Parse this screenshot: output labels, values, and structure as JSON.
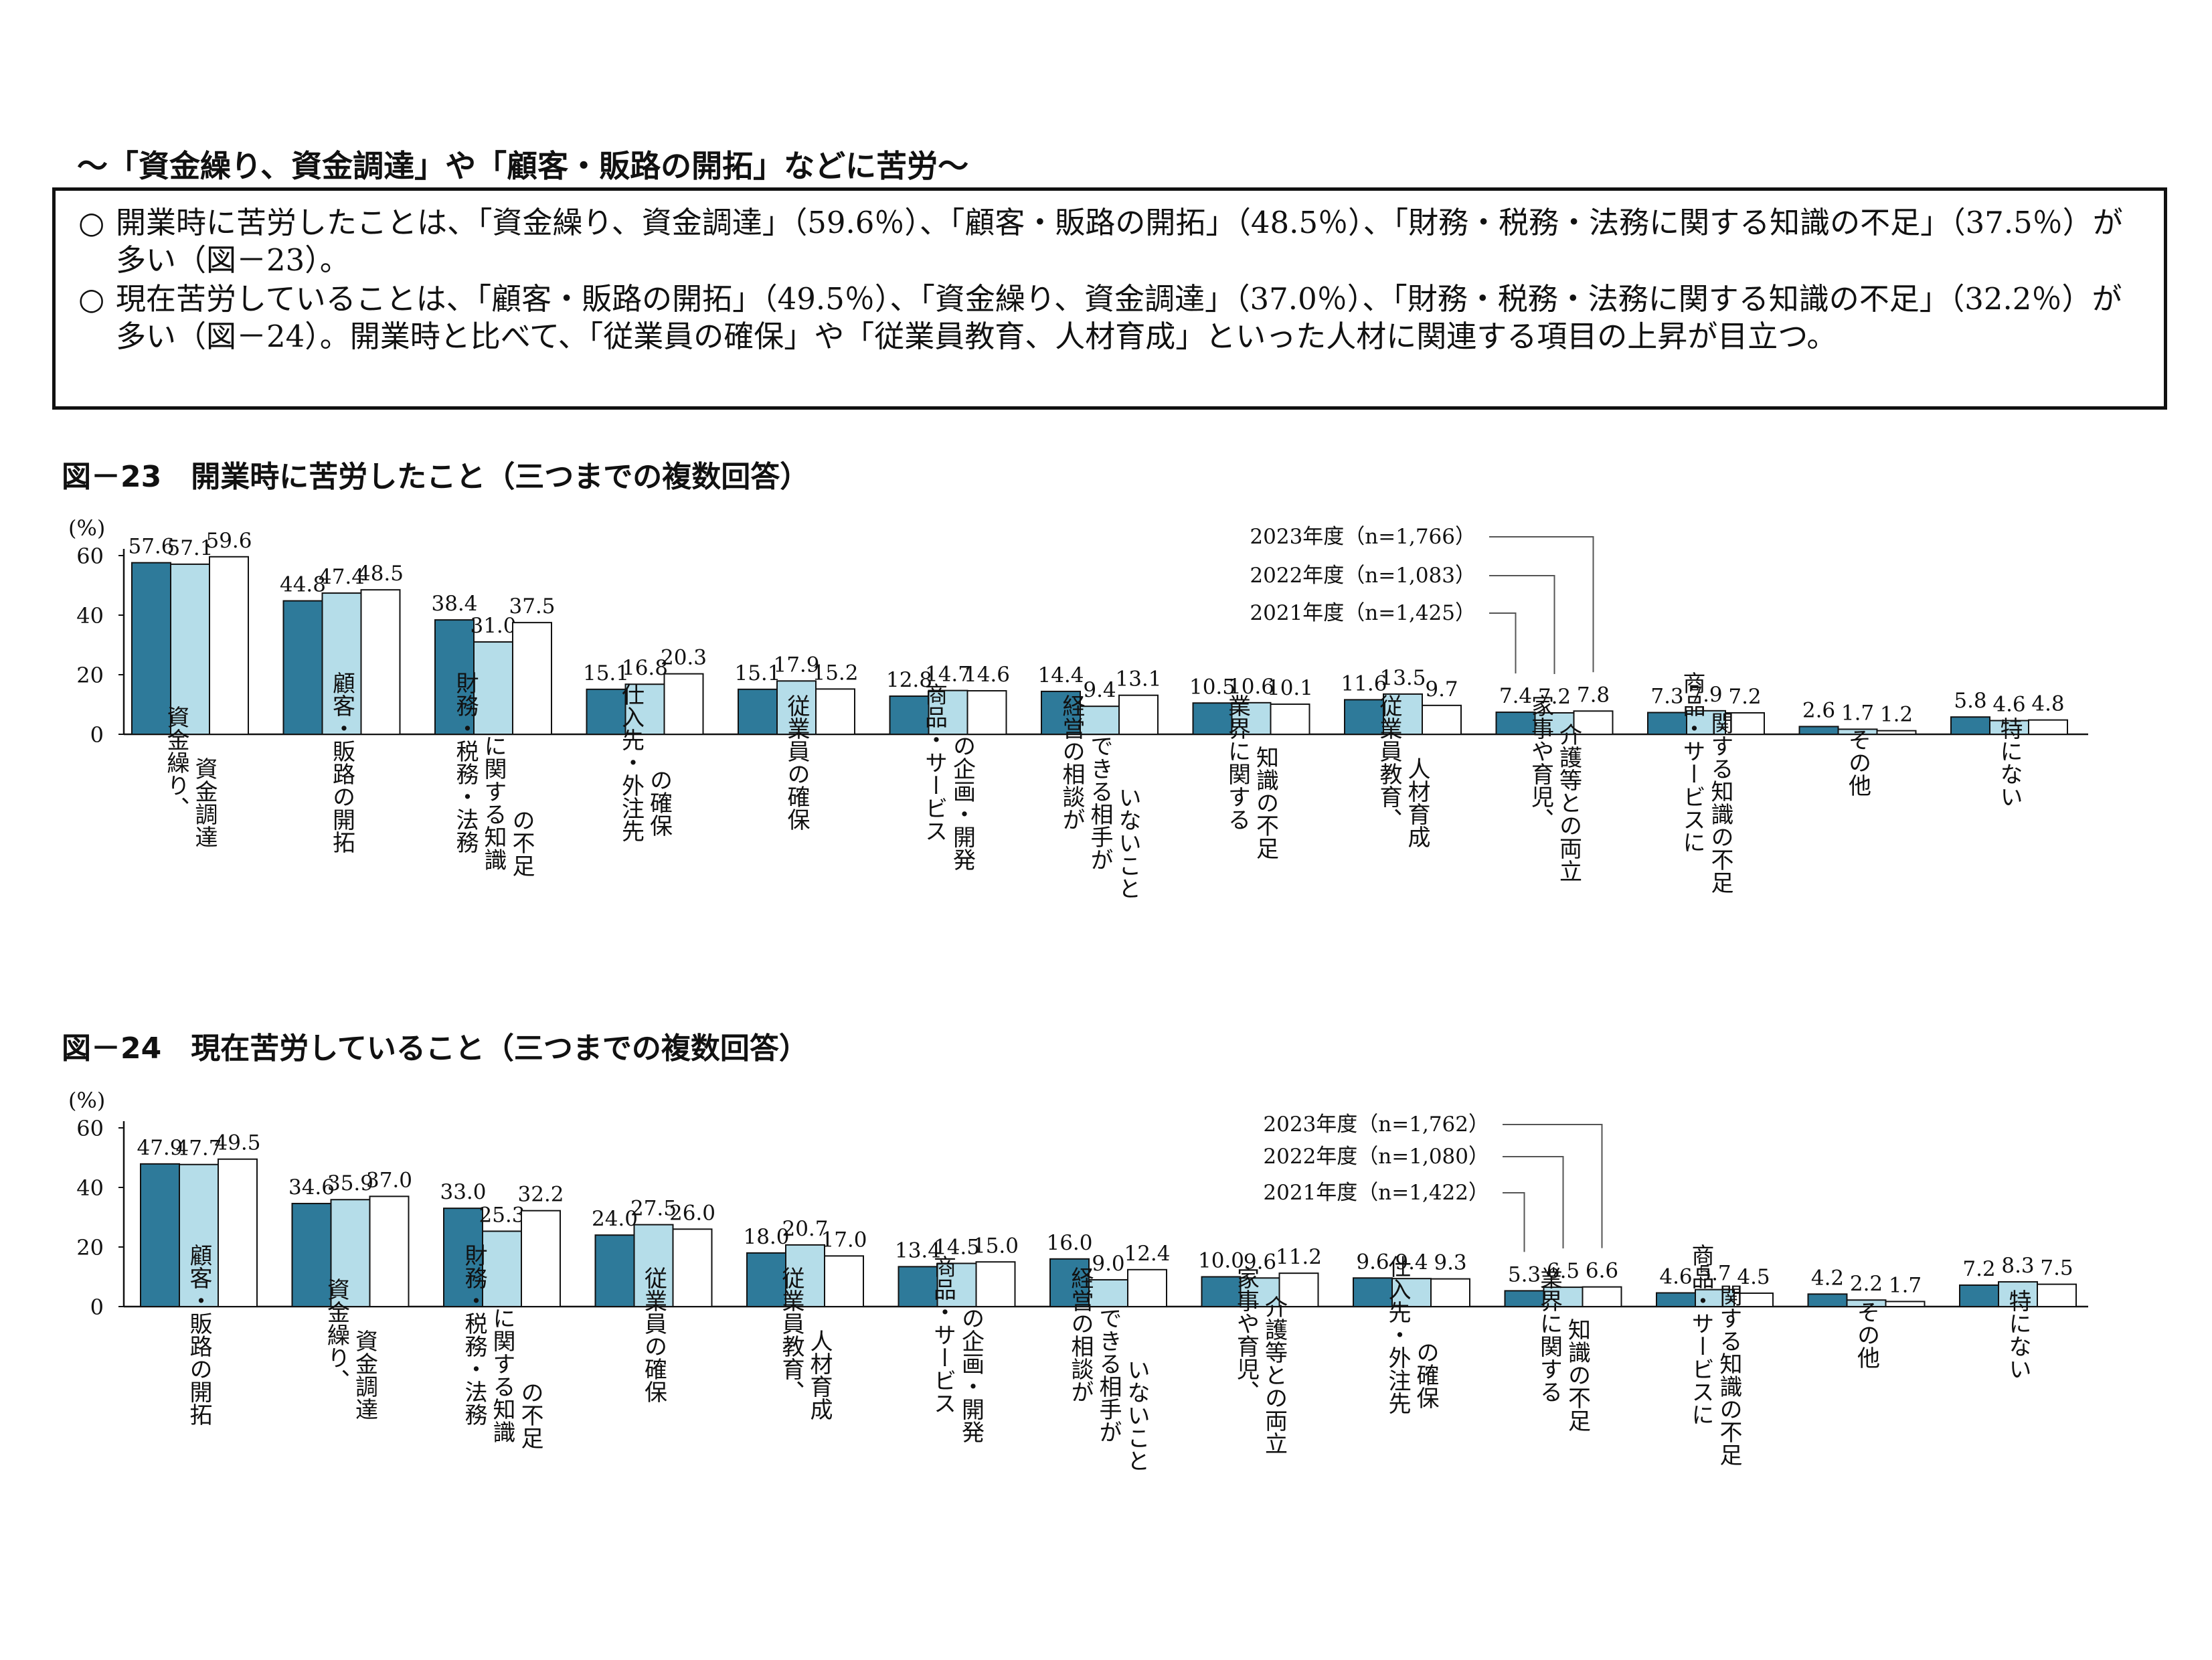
{
  "heading": "～「資金繰り、資金調達」や「顧客・販路の開拓」などに苦労～",
  "summary": [
    {
      "bullet": "○",
      "text": "開業時に苦労したことは、「資金繰り、資金調達」（59.6％）、「顧客・販路の開拓」（48.5％）、「財務・税務・法務に関する知識の不足」（37.5％）が多い（図－23）。"
    },
    {
      "bullet": "○",
      "text": "現在苦労していることは、「顧客・販路の開拓」（49.5％）、「資金繰り、資金調達」（37.0％）、「財務・税務・法務に関する知識の不足」（32.2％）が多い（図－24）。開業時と比べて、「従業員の確保」や「従業員教育、人材育成」といった人材に関連する項目の上昇が目立つ。"
    }
  ],
  "colors": {
    "s2021": "#2e7a9a",
    "s2022": "#b5dde9",
    "s2023": "#ffffff",
    "stroke": "#111111"
  },
  "chart_data": [
    {
      "type": "bar",
      "title": "図－23　開業時に苦労したこと（三つまでの複数回答）",
      "ylabel": "(%)",
      "ylim": [
        0,
        60
      ],
      "yticks": [
        0,
        20,
        40,
        60
      ],
      "legend_placement": "top-right",
      "categories": [
        "資金繰り、資金調達",
        "顧客・販路の開拓",
        "財務・税務・法務に関する知識の不足",
        "仕入先・外注先の確保",
        "従業員の確保",
        "商品・サービスの企画・開発",
        "経営の相談ができる相手がいないこと",
        "業界に関する知識の不足",
        "従業員教育、人材育成",
        "家事や育児、介護等との両立",
        "商品・サービスに関する知識の不足",
        "その他",
        "特にない"
      ],
      "category_labels": [
        [
          "資金繰り、",
          "資金調達"
        ],
        [
          "顧客・販路の開拓"
        ],
        [
          "財務・税務・法務",
          "に関する知識",
          "の不足"
        ],
        [
          "仕入先・外注先",
          "の確保"
        ],
        [
          "従業員の確保"
        ],
        [
          "商品・サービス",
          "の企画・開発"
        ],
        [
          "経営の相談が",
          "できる相手が",
          "いないこと"
        ],
        [
          "業界に関する",
          "知識の不足"
        ],
        [
          "従業員教育、",
          "人材育成"
        ],
        [
          "家事や育児、",
          "介護等との両立"
        ],
        [
          "商品・サービスに",
          "関する知識の不足"
        ],
        [
          "その他"
        ],
        [
          "特にない"
        ]
      ],
      "series": [
        {
          "name": "2021年度（n=1,425）",
          "values": [
            57.6,
            44.8,
            38.4,
            15.1,
            15.1,
            12.8,
            14.4,
            10.5,
            11.6,
            7.4,
            7.3,
            2.6,
            5.8
          ]
        },
        {
          "name": "2022年度（n=1,083）",
          "values": [
            57.1,
            47.4,
            31.0,
            16.8,
            17.9,
            14.7,
            9.4,
            10.6,
            13.5,
            7.2,
            7.9,
            1.7,
            4.6
          ]
        },
        {
          "name": "2023年度（n=1,766）",
          "values": [
            59.6,
            48.5,
            37.5,
            20.3,
            15.2,
            14.6,
            13.1,
            10.1,
            9.7,
            7.8,
            7.2,
            1.2,
            4.8
          ]
        }
      ]
    },
    {
      "type": "bar",
      "title": "図－24　現在苦労していること（三つまでの複数回答）",
      "ylabel": "(%)",
      "ylim": [
        0,
        60
      ],
      "yticks": [
        0,
        20,
        40,
        60
      ],
      "legend_placement": "top-right",
      "categories": [
        "顧客・販路の開拓",
        "資金繰り、資金調達",
        "財務・税務・法務に関する知識の不足",
        "従業員の確保",
        "従業員教育、人材育成",
        "商品・サービスの企画・開発",
        "経営の相談ができる相手がいないこと",
        "家事や育児、介護等との両立",
        "仕入先・外注先の確保",
        "業界に関する知識の不足",
        "商品・サービスに関する知識の不足",
        "その他",
        "特にない"
      ],
      "category_labels": [
        [
          "顧客・販路の開拓"
        ],
        [
          "資金繰り、",
          "資金調達"
        ],
        [
          "財務・税務・法務",
          "に関する知識",
          "の不足"
        ],
        [
          "従業員の確保"
        ],
        [
          "従業員教育、",
          "人材育成"
        ],
        [
          "商品・サービス",
          "の企画・開発"
        ],
        [
          "経営の相談が",
          "できる相手が",
          "いないこと"
        ],
        [
          "家事や育児、",
          "介護等との両立"
        ],
        [
          "仕入先・外注先",
          "の確保"
        ],
        [
          "業界に関する",
          "知識の不足"
        ],
        [
          "商品・サービスに",
          "関する知識の不足"
        ],
        [
          "その他"
        ],
        [
          "特にない"
        ]
      ],
      "series": [
        {
          "name": "2021年度（n=1,422）",
          "values": [
            47.9,
            34.6,
            33.0,
            24.0,
            18.0,
            13.4,
            16.0,
            10.0,
            9.6,
            5.3,
            4.6,
            4.2,
            7.2
          ]
        },
        {
          "name": "2022年度（n=1,080）",
          "values": [
            47.7,
            35.9,
            25.3,
            27.5,
            20.7,
            14.5,
            9.0,
            9.6,
            9.4,
            6.5,
            5.7,
            2.2,
            8.3
          ]
        },
        {
          "name": "2023年度（n=1,762）",
          "values": [
            49.5,
            37.0,
            32.2,
            26.0,
            17.0,
            15.0,
            12.4,
            11.2,
            9.3,
            6.6,
            4.5,
            1.7,
            7.5
          ]
        }
      ]
    }
  ]
}
